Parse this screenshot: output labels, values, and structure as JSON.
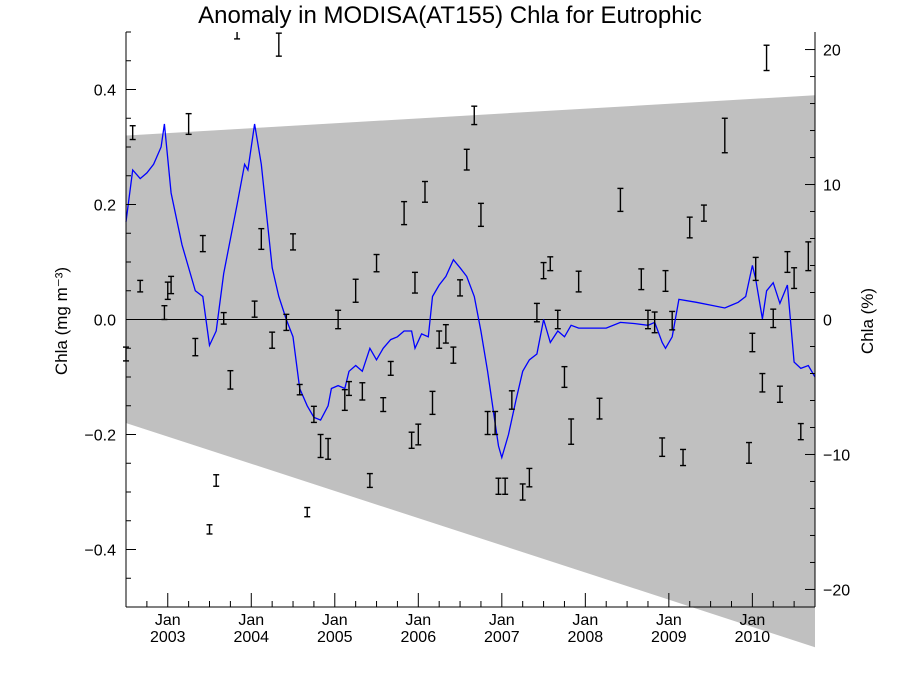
{
  "chart_data": {
    "type": "line",
    "title": "Anomaly in MODISA(AT155) Chla for Eutrophic",
    "ylabel": "Chla (mg m⁻³)",
    "ylabel_right": "Chla (%)",
    "xlim": [
      2002.5,
      2010.75
    ],
    "ylim": [
      -0.5,
      0.5
    ],
    "ylim_right": [
      -21.3,
      21.3
    ],
    "yticks": [
      -0.4,
      -0.2,
      0.0,
      0.2,
      0.4
    ],
    "ytick_labels": [
      "−0.4",
      "−0.2",
      "0.0",
      "0.2",
      "0.4"
    ],
    "yticks_right": [
      -20,
      -10,
      0,
      10,
      20
    ],
    "ytick_labels_right": [
      "−20",
      "−10",
      "0",
      "10",
      "20"
    ],
    "xticks": [
      2003,
      2004,
      2005,
      2006,
      2007,
      2008,
      2009,
      2010
    ],
    "xtick_month_labels": [
      "Jan",
      "Jan",
      "Jan",
      "Jan",
      "Jan",
      "Jan",
      "Jan",
      "Jan"
    ],
    "xtick_year_labels": [
      "2003",
      "2004",
      "2005",
      "2006",
      "2007",
      "2008",
      "2009",
      "2010"
    ],
    "zero_line": 0.0,
    "confidence_band": {
      "color": "#c0c0c0",
      "upper": [
        [
          2002.5,
          0.32
        ],
        [
          2010.75,
          0.39
        ]
      ],
      "lower": [
        [
          2002.5,
          -0.18
        ],
        [
          2010.75,
          -0.57
        ]
      ]
    },
    "series": [
      {
        "color": "#0000ff",
        "points": [
          [
            2002.5,
            0.17
          ],
          [
            2002.58,
            0.26
          ],
          [
            2002.67,
            0.245
          ],
          [
            2002.75,
            0.255
          ],
          [
            2002.83,
            0.27
          ],
          [
            2002.92,
            0.3
          ],
          [
            2002.96,
            0.34
          ],
          [
            2003.04,
            0.22
          ],
          [
            2003.17,
            0.13
          ],
          [
            2003.33,
            0.05
          ],
          [
            2003.42,
            0.04
          ],
          [
            2003.5,
            -0.045
          ],
          [
            2003.58,
            -0.02
          ],
          [
            2003.67,
            0.08
          ],
          [
            2003.75,
            0.14
          ],
          [
            2003.83,
            0.2
          ],
          [
            2003.92,
            0.27
          ],
          [
            2003.96,
            0.26
          ],
          [
            2004.04,
            0.34
          ],
          [
            2004.12,
            0.27
          ],
          [
            2004.25,
            0.09
          ],
          [
            2004.33,
            0.04
          ],
          [
            2004.42,
            0.0
          ],
          [
            2004.5,
            -0.03
          ],
          [
            2004.58,
            -0.12
          ],
          [
            2004.67,
            -0.15
          ],
          [
            2004.75,
            -0.17
          ],
          [
            2004.83,
            -0.175
          ],
          [
            2004.92,
            -0.15
          ],
          [
            2004.96,
            -0.12
          ],
          [
            2005.04,
            -0.115
          ],
          [
            2005.12,
            -0.12
          ],
          [
            2005.17,
            -0.09
          ],
          [
            2005.25,
            -0.08
          ],
          [
            2005.33,
            -0.09
          ],
          [
            2005.42,
            -0.05
          ],
          [
            2005.5,
            -0.07
          ],
          [
            2005.58,
            -0.05
          ],
          [
            2005.67,
            -0.035
          ],
          [
            2005.75,
            -0.03
          ],
          [
            2005.83,
            -0.02
          ],
          [
            2005.92,
            -0.02
          ],
          [
            2005.96,
            -0.05
          ],
          [
            2006.04,
            -0.025
          ],
          [
            2006.12,
            -0.03
          ],
          [
            2006.17,
            0.04
          ],
          [
            2006.25,
            0.06
          ],
          [
            2006.33,
            0.075
          ],
          [
            2006.42,
            0.104
          ],
          [
            2006.5,
            0.09
          ],
          [
            2006.58,
            0.075
          ],
          [
            2006.67,
            0.04
          ],
          [
            2006.75,
            -0.02
          ],
          [
            2006.83,
            -0.09
          ],
          [
            2006.92,
            -0.18
          ],
          [
            2006.96,
            -0.22
          ],
          [
            2007.0,
            -0.24
          ],
          [
            2007.08,
            -0.2
          ],
          [
            2007.17,
            -0.14
          ],
          [
            2007.25,
            -0.09
          ],
          [
            2007.33,
            -0.07
          ],
          [
            2007.42,
            -0.06
          ],
          [
            2007.5,
            0.0
          ],
          [
            2007.58,
            -0.04
          ],
          [
            2007.67,
            -0.02
          ],
          [
            2007.75,
            -0.03
          ],
          [
            2007.83,
            -0.01
          ],
          [
            2007.92,
            -0.015
          ],
          [
            2008.0,
            -0.015
          ],
          [
            2008.25,
            -0.015
          ],
          [
            2008.42,
            -0.005
          ],
          [
            2008.58,
            -0.007
          ],
          [
            2008.75,
            -0.01
          ],
          [
            2008.83,
            -0.005
          ],
          [
            2008.92,
            -0.04
          ],
          [
            2008.96,
            -0.05
          ],
          [
            2009.04,
            -0.03
          ],
          [
            2009.12,
            0.035
          ],
          [
            2009.33,
            0.03
          ],
          [
            2009.5,
            0.025
          ],
          [
            2009.67,
            0.02
          ],
          [
            2009.75,
            0.025
          ],
          [
            2009.83,
            0.03
          ],
          [
            2009.92,
            0.04
          ],
          [
            2010.0,
            0.094
          ],
          [
            2010.04,
            0.07
          ],
          [
            2010.12,
            0.001
          ],
          [
            2010.17,
            0.05
          ],
          [
            2010.25,
            0.064
          ],
          [
            2010.33,
            0.028
          ],
          [
            2010.42,
            0.06
          ],
          [
            2010.5,
            -0.074
          ],
          [
            2010.58,
            -0.085
          ],
          [
            2010.67,
            -0.08
          ],
          [
            2010.75,
            -0.1
          ]
        ]
      }
    ],
    "error_bars": [
      {
        "x": 2002.5,
        "y": -0.06,
        "err": 0.012
      },
      {
        "x": 2002.58,
        "y": 0.325,
        "err": 0.012
      },
      {
        "x": 2002.67,
        "y": 0.058,
        "err": 0.01
      },
      {
        "x": 2002.96,
        "y": 0.012,
        "err": 0.012
      },
      {
        "x": 2003.0,
        "y": 0.05,
        "err": 0.015
      },
      {
        "x": 2003.04,
        "y": 0.06,
        "err": 0.015
      },
      {
        "x": 2003.25,
        "y": 0.34,
        "err": 0.018
      },
      {
        "x": 2003.33,
        "y": -0.048,
        "err": 0.015
      },
      {
        "x": 2003.42,
        "y": 0.132,
        "err": 0.014
      },
      {
        "x": 2003.5,
        "y": -0.365,
        "err": 0.008
      },
      {
        "x": 2003.58,
        "y": -0.28,
        "err": 0.01
      },
      {
        "x": 2003.67,
        "y": 0.002,
        "err": 0.01
      },
      {
        "x": 2003.75,
        "y": -0.105,
        "err": 0.016
      },
      {
        "x": 2003.83,
        "y": 0.498,
        "err": 0.01
      },
      {
        "x": 2004.04,
        "y": 0.018,
        "err": 0.014
      },
      {
        "x": 2004.12,
        "y": 0.14,
        "err": 0.018
      },
      {
        "x": 2004.25,
        "y": -0.036,
        "err": 0.014
      },
      {
        "x": 2004.33,
        "y": 0.478,
        "err": 0.02
      },
      {
        "x": 2004.42,
        "y": -0.005,
        "err": 0.014
      },
      {
        "x": 2004.5,
        "y": 0.135,
        "err": 0.014
      },
      {
        "x": 2004.58,
        "y": -0.122,
        "err": 0.009
      },
      {
        "x": 2004.67,
        "y": -0.335,
        "err": 0.008
      },
      {
        "x": 2004.75,
        "y": -0.165,
        "err": 0.014
      },
      {
        "x": 2004.83,
        "y": -0.22,
        "err": 0.02
      },
      {
        "x": 2004.92,
        "y": -0.225,
        "err": 0.018
      },
      {
        "x": 2005.04,
        "y": 0.0,
        "err": 0.016
      },
      {
        "x": 2005.12,
        "y": -0.14,
        "err": 0.018
      },
      {
        "x": 2005.17,
        "y": -0.12,
        "err": 0.012
      },
      {
        "x": 2005.25,
        "y": 0.05,
        "err": 0.02
      },
      {
        "x": 2005.33,
        "y": -0.125,
        "err": 0.015
      },
      {
        "x": 2005.42,
        "y": -0.28,
        "err": 0.012
      },
      {
        "x": 2005.5,
        "y": 0.098,
        "err": 0.015
      },
      {
        "x": 2005.58,
        "y": -0.148,
        "err": 0.012
      },
      {
        "x": 2005.67,
        "y": -0.085,
        "err": 0.012
      },
      {
        "x": 2005.83,
        "y": 0.185,
        "err": 0.02
      },
      {
        "x": 2005.92,
        "y": -0.21,
        "err": 0.014
      },
      {
        "x": 2005.96,
        "y": 0.064,
        "err": 0.018
      },
      {
        "x": 2006.0,
        "y": -0.2,
        "err": 0.018
      },
      {
        "x": 2006.08,
        "y": 0.222,
        "err": 0.018
      },
      {
        "x": 2006.17,
        "y": -0.145,
        "err": 0.02
      },
      {
        "x": 2006.25,
        "y": -0.035,
        "err": 0.015
      },
      {
        "x": 2006.33,
        "y": -0.025,
        "err": 0.016
      },
      {
        "x": 2006.42,
        "y": -0.062,
        "err": 0.014
      },
      {
        "x": 2006.5,
        "y": 0.055,
        "err": 0.014
      },
      {
        "x": 2006.58,
        "y": 0.278,
        "err": 0.018
      },
      {
        "x": 2006.67,
        "y": 0.355,
        "err": 0.016
      },
      {
        "x": 2006.75,
        "y": 0.182,
        "err": 0.02
      },
      {
        "x": 2006.83,
        "y": -0.18,
        "err": 0.02
      },
      {
        "x": 2006.92,
        "y": -0.18,
        "err": 0.02
      },
      {
        "x": 2006.96,
        "y": -0.29,
        "err": 0.014
      },
      {
        "x": 2007.04,
        "y": -0.29,
        "err": 0.014
      },
      {
        "x": 2007.12,
        "y": -0.14,
        "err": 0.016
      },
      {
        "x": 2007.25,
        "y": -0.3,
        "err": 0.014
      },
      {
        "x": 2007.33,
        "y": -0.275,
        "err": 0.016
      },
      {
        "x": 2007.42,
        "y": 0.012,
        "err": 0.016
      },
      {
        "x": 2007.5,
        "y": 0.085,
        "err": 0.014
      },
      {
        "x": 2007.58,
        "y": 0.097,
        "err": 0.012
      },
      {
        "x": 2007.67,
        "y": 0.0,
        "err": 0.016
      },
      {
        "x": 2007.75,
        "y": -0.1,
        "err": 0.018
      },
      {
        "x": 2007.83,
        "y": -0.195,
        "err": 0.022
      },
      {
        "x": 2007.92,
        "y": 0.066,
        "err": 0.018
      },
      {
        "x": 2008.17,
        "y": -0.155,
        "err": 0.018
      },
      {
        "x": 2008.42,
        "y": 0.208,
        "err": 0.02
      },
      {
        "x": 2008.67,
        "y": 0.07,
        "err": 0.018
      },
      {
        "x": 2008.75,
        "y": 0.0,
        "err": 0.016
      },
      {
        "x": 2008.83,
        "y": -0.005,
        "err": 0.018
      },
      {
        "x": 2008.92,
        "y": -0.222,
        "err": 0.016
      },
      {
        "x": 2008.96,
        "y": 0.067,
        "err": 0.018
      },
      {
        "x": 2009.04,
        "y": -0.002,
        "err": 0.016
      },
      {
        "x": 2009.17,
        "y": -0.24,
        "err": 0.014
      },
      {
        "x": 2009.25,
        "y": 0.16,
        "err": 0.018
      },
      {
        "x": 2009.42,
        "y": 0.185,
        "err": 0.014
      },
      {
        "x": 2009.67,
        "y": 0.32,
        "err": 0.03
      },
      {
        "x": 2009.96,
        "y": -0.232,
        "err": 0.018
      },
      {
        "x": 2010.0,
        "y": -0.04,
        "err": 0.016
      },
      {
        "x": 2010.04,
        "y": 0.088,
        "err": 0.02
      },
      {
        "x": 2010.12,
        "y": -0.11,
        "err": 0.016
      },
      {
        "x": 2010.17,
        "y": 0.455,
        "err": 0.022
      },
      {
        "x": 2010.25,
        "y": 0.002,
        "err": 0.016
      },
      {
        "x": 2010.33,
        "y": -0.13,
        "err": 0.014
      },
      {
        "x": 2010.42,
        "y": 0.1,
        "err": 0.018
      },
      {
        "x": 2010.5,
        "y": 0.072,
        "err": 0.018
      },
      {
        "x": 2010.58,
        "y": -0.195,
        "err": 0.014
      },
      {
        "x": 2010.67,
        "y": 0.11,
        "err": 0.025
      }
    ],
    "grid": false,
    "legend": "none"
  }
}
